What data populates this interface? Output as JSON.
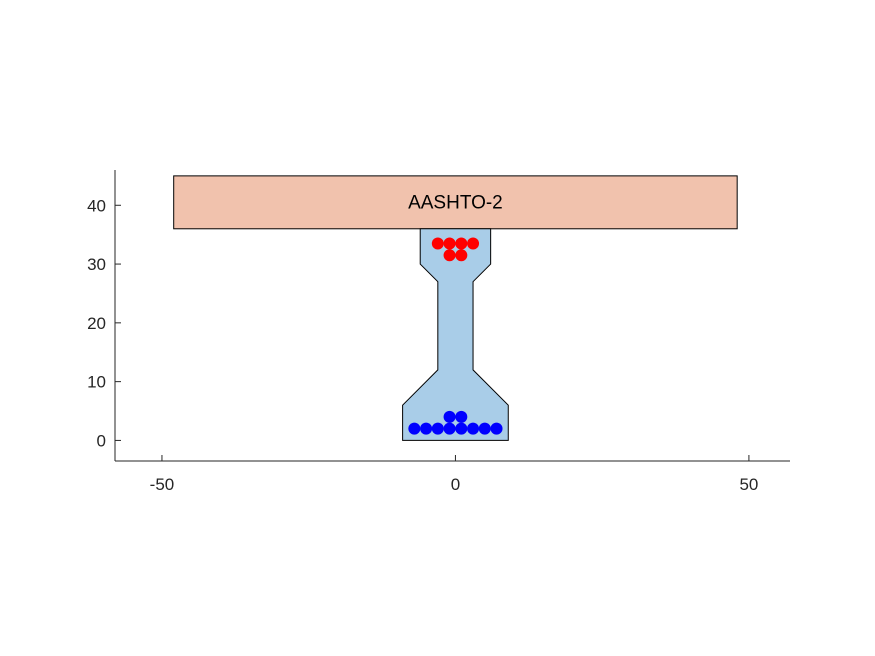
{
  "chart_data": {
    "type": "scatter",
    "title": "",
    "xlabel": "",
    "ylabel": "",
    "xlim": [
      -58,
      57
    ],
    "ylim": [
      -3.5,
      46
    ],
    "x_ticks": [
      -50,
      0,
      50
    ],
    "y_ticks": [
      0,
      10,
      20,
      30,
      40
    ],
    "grid": false,
    "axis_color": "#262626",
    "section_label": "AASHTO-2",
    "deck_slab": {
      "x": [
        -48,
        48
      ],
      "y": [
        36,
        45
      ],
      "fill": "#f1c2ad",
      "edge": "#000000"
    },
    "girder_outline": {
      "fill": "#a9cde8",
      "edge": "#000000",
      "points": [
        [
          -9,
          0
        ],
        [
          9,
          0
        ],
        [
          9,
          6
        ],
        [
          3,
          12
        ],
        [
          3,
          27
        ],
        [
          6,
          30
        ],
        [
          6,
          36
        ],
        [
          -6,
          36
        ],
        [
          -6,
          30
        ],
        [
          -3,
          27
        ],
        [
          -3,
          12
        ],
        [
          -9,
          6
        ]
      ]
    },
    "series": [
      {
        "role": "top strands",
        "color": "#ff0000",
        "x": [
          -3,
          -1,
          1,
          3,
          -1,
          1
        ],
        "y": [
          33.5,
          33.5,
          33.5,
          33.5,
          31.5,
          31.5
        ]
      },
      {
        "role": "bottom strands",
        "color": "#0000ff",
        "x": [
          -7,
          -5,
          -3,
          -1,
          1,
          3,
          5,
          7,
          -1,
          1
        ],
        "y": [
          2,
          2,
          2,
          2,
          2,
          2,
          2,
          2,
          4,
          4
        ]
      }
    ],
    "marker_radius": 6
  }
}
